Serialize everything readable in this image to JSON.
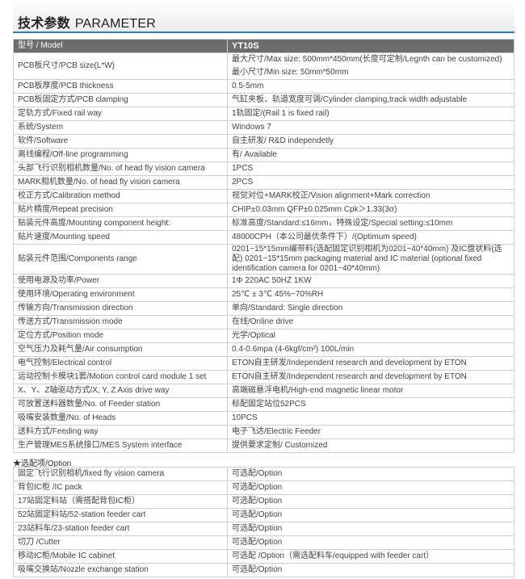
{
  "header": {
    "title_cn": "技术参数",
    "title_en": "PARAMETER",
    "accent": "#2a7fc1"
  },
  "table": {
    "head": {
      "label": "型号 / Model",
      "value": "YT10S"
    },
    "rows": [
      {
        "label": "PCB板尺寸/PCB size(L*W)",
        "value": [
          "最大尺寸/Max size:  500mm*450mm(长度可定制/Legnth can be customized)",
          "最小尺寸/Min  size:  50mm*50mm"
        ]
      },
      {
        "label": "PCB板厚度/PCB thickness",
        "value": "0.5-5mm"
      },
      {
        "label": "PCB板固定方式/PCB clamping",
        "value": "气缸夹板、轨道宽度可调/Cylinder clamping,track width adjustable"
      },
      {
        "label": "定轨方式/Fixed rail  way",
        "value": "1轨固定/(Rail 1 is fixed rail)"
      },
      {
        "label": "系统/System",
        "value": "Windows 7"
      },
      {
        "label": "软件/Software",
        "value": "自主研发/ R&D independetly"
      },
      {
        "label": "离线编程/Off-line programming",
        "value": "有/ Available"
      },
      {
        "label": "头部飞行识别相机数量/No. of head fly vision camera",
        "value": "1PCS"
      },
      {
        "label": "MARK相机数量/No. of head fly vision camera",
        "value": "2PCS"
      },
      {
        "label": "校正方式/Calibration method",
        "value": "视觉对位+MARK校正/Vision alignment+Mark correction"
      },
      {
        "label": "贴片精度/Repeat precision",
        "value": "CHIP±0.03mm  QFP±0.025mm   Cpk＞1.33(3σ)"
      },
      {
        "label": "贴装元件高度/Mounting component height:",
        "value": "标准高度/Standard:≤16mm，特殊设定/Special setting:≤10mm"
      },
      {
        "label": "贴片速度/Mounting speed",
        "value": "48000CPH（本公司最优条件下）/(Optimum speed)"
      },
      {
        "label": "贴装元件范围/Components range",
        "value": "0201~15*15mm编带料(选配固定识别相机为0201~40*40mm) 及IC盘状料(选配) 0201~15*15mm packaging material and IC material (optional fixed identification camera for 0201~40*40mm)"
      },
      {
        "label": "使用电源及功率/Power",
        "value": "1Φ  220AC  50HZ  1KW"
      },
      {
        "label": "使用环境/Operating environment",
        "value": "25℃ ± 3℃    45%~70%RH"
      },
      {
        "label": "传输方向/Transmission direction",
        "value": "单向/Standard: Single direction"
      },
      {
        "label": "传送方式/Transmission mode",
        "value": "在线/Online drive"
      },
      {
        "label": "定位方式/Position mode",
        "value": "光学/Optical"
      },
      {
        "label": "空气压力及耗气量/Air consumption",
        "value": "0.4-0.6mpa (4-6kgf/cm²)  100L/min"
      },
      {
        "label": "电气控制/Electrical control",
        "value": "ETON自主研发/Independent research and development by ETON"
      },
      {
        "label": "运动控制卡模块1套/Motion control card module 1 set",
        "value": "ETON自主研发/Independent research and development by ETON"
      },
      {
        "label": "X、Y、Z轴驱动方式/X, Y, Z Axis drive way",
        "value": "高端磁悬浮电机/High-end magnetic linear motor"
      },
      {
        "label": "可放置送料器数量/No. of Feeder station",
        "value": "标配固定站位52PCS"
      },
      {
        "label": "吸嘴安装数量/No. of Heads",
        "value": "10PCS"
      },
      {
        "label": "送料方式/Feeding way",
        "value": "电子飞达/Electric Feeder"
      },
      {
        "label": "生产管理MES系统接口/MES System interface",
        "value": "提供要求定制/ Customized"
      }
    ]
  },
  "options": {
    "label": "★选配项/Option",
    "rows": [
      {
        "label": "固定飞行识别相机/fixed fly vision camera",
        "value": "可选配/Option"
      },
      {
        "label": "背包IC柜 /IC  pack",
        "value": "可选配/Option"
      },
      {
        "label": "17站固定料站（需搭配背包IC柜）",
        "value": "可选配/Option"
      },
      {
        "label": "52站固定料站/52-station feeder cart",
        "value": "可选配/Option"
      },
      {
        "label": "23站料车/23-station feeder cart",
        "value": "可选配/Option"
      },
      {
        "label": "切刀 /Cutter",
        "value": "可选配/Option"
      },
      {
        "label": "移动IC柜/Mobile IC cabinet",
        "value": "可选配 /Option（需选配料车/equipped with feeder cart）"
      },
      {
        "label": "吸嘴交换站/Nozzle exchange station",
        "value": "可选配/Option"
      }
    ]
  }
}
